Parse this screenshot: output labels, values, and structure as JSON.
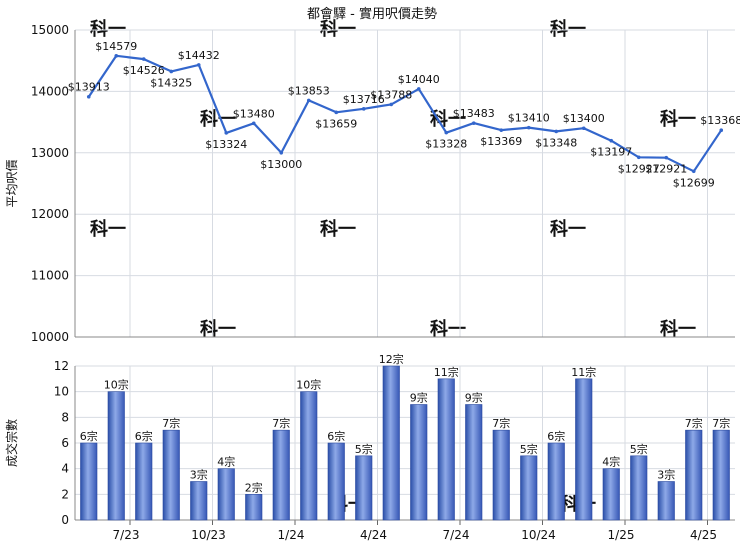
{
  "chart_data": [
    {
      "type": "line",
      "title": "都會驛 - 實用呎價走勢",
      "ylabel": "平均呎價",
      "xlabel": "",
      "ylim": [
        10000,
        15000
      ],
      "yticks": [
        10000,
        11000,
        12000,
        13000,
        14000,
        15000
      ],
      "grid": true,
      "color": "#3366cc",
      "values": [
        13913,
        14579,
        14526,
        14325,
        14432,
        13324,
        13480,
        13000,
        13853,
        13659,
        13716,
        13788,
        14040,
        13328,
        13483,
        13369,
        13410,
        13348,
        13400,
        13197,
        12927,
        12921,
        12699,
        13368
      ],
      "data_labels": [
        "$13913",
        "$14579",
        "$14526",
        "$14325",
        "$14432",
        "$13324",
        "$13480",
        "$13000",
        "$13853",
        "$13659",
        "$13716",
        "$13788",
        "$14040",
        "$13328",
        "$13483",
        "$13369",
        "$13410",
        "$13348",
        "$13400",
        "$13197",
        "$12927",
        "$12921",
        "$12699",
        "$13368"
      ]
    },
    {
      "type": "bar",
      "ylabel": "成交宗數",
      "xlabel": "",
      "ylim": [
        0,
        12
      ],
      "yticks": [
        0,
        2,
        4,
        6,
        8,
        10,
        12
      ],
      "grid": true,
      "color": "#3366cc",
      "values": [
        6,
        10,
        6,
        7,
        3,
        4,
        2,
        7,
        10,
        6,
        5,
        12,
        9,
        11,
        9,
        7,
        5,
        6,
        11,
        4,
        5,
        3,
        7,
        7
      ],
      "data_labels": [
        "6宗",
        "10宗",
        "6宗",
        "7宗",
        "3宗",
        "4宗",
        "2宗",
        "7宗",
        "10宗",
        "6宗",
        "5宗",
        "12宗",
        "9宗",
        "11宗",
        "9宗",
        "7宗",
        "5宗",
        "6宗",
        "11宗",
        "4宗",
        "5宗",
        "3宗",
        "7宗",
        "7宗"
      ],
      "x_tick_labels": [
        "7/23",
        "10/23",
        "1/24",
        "4/24",
        "7/24",
        "10/24",
        "1/25",
        "4/25"
      ],
      "x_tick_after_index": [
        1,
        4,
        7,
        10,
        13,
        16,
        19,
        22
      ]
    }
  ],
  "watermark": "科一"
}
